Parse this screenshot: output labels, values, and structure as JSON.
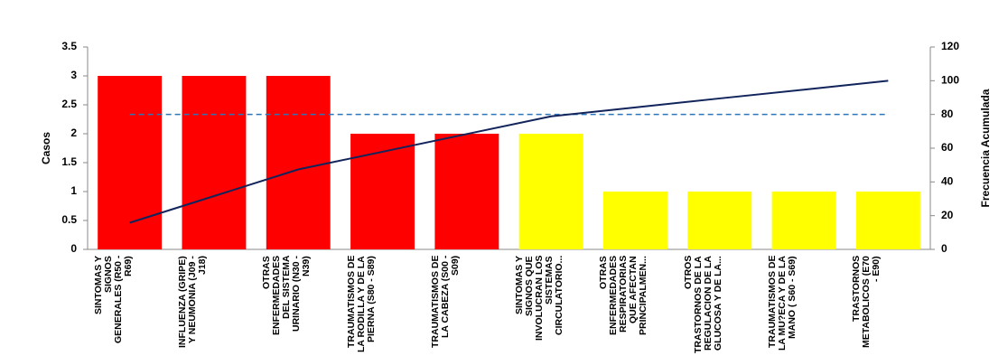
{
  "chart_data": {
    "type": "pareto",
    "y_label": "Casos",
    "y2_label": "Frecuencia Acumulada",
    "categories": [
      "SINTOMAS Y SIGNOS GENERALES (R50 - R69)",
      "INFLUENZA (GRIPE) Y NEUMONIA (J09 - J18)",
      "OTRAS ENFERMEDADES DEL SISTEMA URINARIO (N30 - N39)",
      "TRAUMATISMOS DE LA RODILLA Y DE LA PIERNA (S80 - S89)",
      "TRAUMATISMOS DE LA CABEZA (S00 - S09)",
      "SINTOMAS Y SIGNOS QUE INVOLUCRAN LOS SISTEMAS CIRCULATORIO...",
      "OTRAS ENFERMEDADES RESPIRATORIAS QUE AFECTAN PRINCIPALMEN...",
      "OTROS TRASTORNOS DE LA REGULACION DE LA GLUCOSA Y DE LA...",
      "TRAUMATISMOS DE LA MU?ECA Y DE LA MANO ( S60 - S69)",
      "TRASTORNOS METABOLICOS (E70 - E90)"
    ],
    "values": [
      3,
      3,
      3,
      2,
      2,
      2,
      1,
      1,
      1,
      1
    ],
    "bar_colors": [
      "#ff0000",
      "#ff0000",
      "#ff0000",
      "#ff0000",
      "#ff0000",
      "#ffff00",
      "#ffff00",
      "#ffff00",
      "#ffff00",
      "#ffff00"
    ],
    "cumulative": {
      "values": [
        15.8,
        31.6,
        47.4,
        57.9,
        68.4,
        78.9,
        84.2,
        89.5,
        94.7,
        100
      ],
      "color": "#12245c",
      "axis": "y2"
    },
    "reference": {
      "value": 80,
      "color": "#2e75b6",
      "axis": "y2"
    },
    "ylim": [
      0,
      3.5
    ],
    "yticks": [
      0,
      0.5,
      1,
      1.5,
      2,
      2.5,
      3,
      3.5
    ],
    "y2lim": [
      0,
      120
    ],
    "y2ticks": [
      0,
      20,
      40,
      60,
      80,
      100,
      120
    ]
  }
}
